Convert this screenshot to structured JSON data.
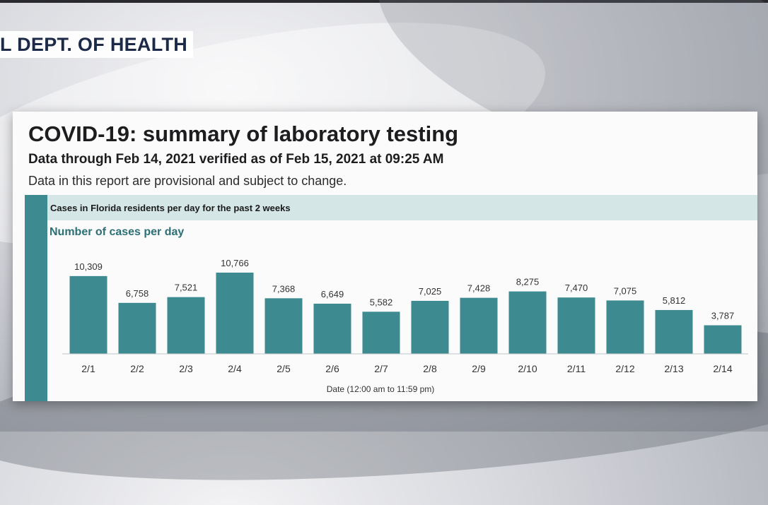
{
  "source_tag": "L DEPT. OF HEALTH",
  "report": {
    "title": "COVID-19: summary of laboratory testing",
    "subtitle": "Data through Feb 14, 2021 verified as of Feb 15, 2021 at 09:25 AM",
    "note": "Data in this report are provisional and subject to change.",
    "panel_heading": "Cases in Florida residents per day for the past 2 weeks"
  },
  "colors": {
    "bar": "#3d8a91",
    "banner": "#d5e6e7",
    "subtitle_text": "#2c6f77"
  },
  "chart_data": {
    "type": "bar",
    "title": "Number of cases per day",
    "xlabel": "Date (12:00 am to 11:59 pm)",
    "ylabel": "",
    "categories": [
      "2/1",
      "2/2",
      "2/3",
      "2/4",
      "2/5",
      "2/6",
      "2/7",
      "2/8",
      "2/9",
      "2/10",
      "2/11",
      "2/12",
      "2/13",
      "2/14"
    ],
    "values": [
      10309,
      6758,
      7521,
      10766,
      7368,
      6649,
      5582,
      7025,
      7428,
      8275,
      7470,
      7075,
      5812,
      3787
    ],
    "value_labels": [
      "10,309",
      "6,758",
      "7,521",
      "10,766",
      "7,368",
      "6,649",
      "5,582",
      "7,025",
      "7,428",
      "8,275",
      "7,470",
      "7,075",
      "5,812",
      "3,787"
    ],
    "ylim": [
      0,
      10766
    ],
    "grid": false,
    "legend": "none"
  }
}
